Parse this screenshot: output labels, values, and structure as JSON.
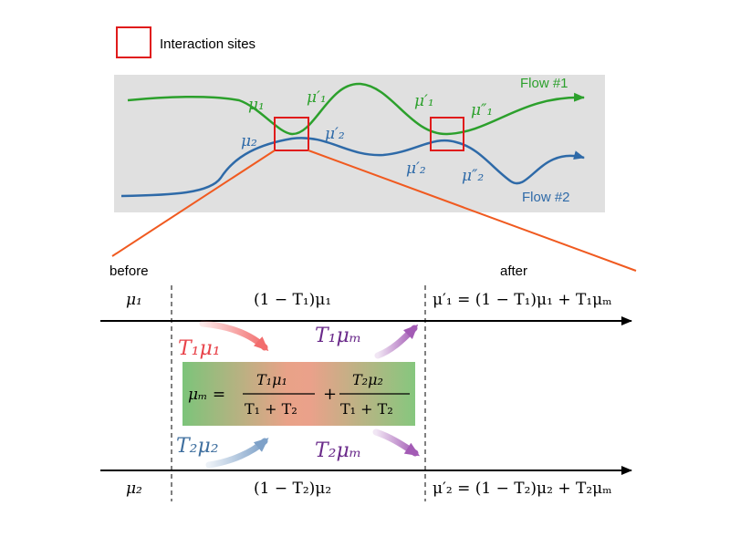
{
  "legend": {
    "label": "Interaction sites"
  },
  "top_panel": {
    "flow1_label": "Flow #1",
    "flow2_label": "Flow #2",
    "flow1_labels": {
      "mu1": "μ₁",
      "mu1p_a": "μ′₁",
      "mu1p_b": "μ′₁",
      "mu1pp": "μ″₁"
    },
    "flow2_labels": {
      "mu2": "μ₂",
      "mu2p_a": "μ′₂",
      "mu2p_b": "μ′₂",
      "mu2pp": "μ″₂"
    }
  },
  "zoom": {
    "before_label": "before",
    "after_label": "after",
    "row1": {
      "left": "μ₁",
      "mid": "(1 − T₁)μ₁",
      "right": "μ′₁ = (1 − T₁)μ₁ + T₁μₘ"
    },
    "row2": {
      "left": "μ₂",
      "mid": "(1 − T₂)μ₂",
      "right": "μ′₂ = (1 − T₂)μ₂ + T₂μₘ"
    },
    "arrows": {
      "t1mu1": "T₁μ₁",
      "t1mum": "T₁μₘ",
      "t2mu2": "T₂μ₂",
      "t2mum": "T₂μₘ"
    },
    "mixing_box": {
      "lhs": "μₘ =",
      "frac1_num": "T₁μ₁",
      "frac1_den": "T₁ + T₂",
      "plus": "+",
      "frac2_num": "T₂μ₂",
      "frac2_den": "T₁ + T₂"
    }
  },
  "colors": {
    "flow1": "#2ca02c",
    "flow2": "#2e6aa8",
    "site_box": "#e01b1b",
    "zoom_lines": "#f05a20",
    "panel_bg": "#e0e0e0",
    "t1mu1": "#e8434a",
    "t2mu2": "#3f6f9f",
    "mum": "#6a2a8a",
    "arrow_red": "#f26d6d",
    "arrow_blue": "#7ea1c8",
    "arrow_purple": "#a35bb5"
  }
}
